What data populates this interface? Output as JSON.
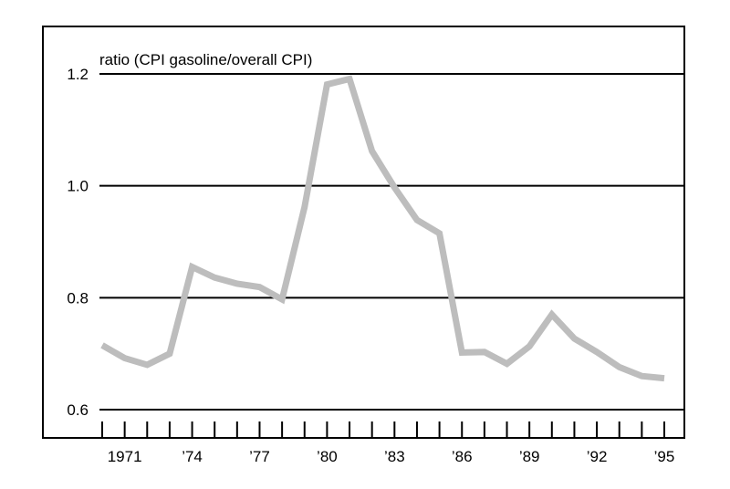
{
  "chart_data": {
    "type": "line",
    "title": "",
    "xlabel": "",
    "ylabel": "ratio (CPI gasoline/overall CPI)",
    "ylim": [
      0.6,
      1.2
    ],
    "yticks": [
      0.6,
      0.8,
      1.0,
      1.2
    ],
    "ytick_labels": [
      "0.6",
      "0.8",
      "1.0",
      "1.2"
    ],
    "xlim": [
      1970,
      1995
    ],
    "xticks": [
      1971,
      1974,
      1977,
      1980,
      1983,
      1986,
      1989,
      1992,
      1995
    ],
    "xtick_labels": [
      "1971",
      "’74",
      "’77",
      "’80",
      "’83",
      "’86",
      "’89",
      "’92",
      "’95"
    ],
    "grid": "horizontal",
    "series": [
      {
        "color": "#bdbdbd",
        "x": [
          1970,
          1971,
          1972,
          1973,
          1974,
          1975,
          1976,
          1977,
          1978,
          1979,
          1980,
          1981,
          1982,
          1983,
          1984,
          1985,
          1986,
          1987,
          1988,
          1989,
          1990,
          1991,
          1992,
          1993,
          1994,
          1995
        ],
        "values": [
          0.715,
          0.692,
          0.68,
          0.7,
          0.855,
          0.836,
          0.825,
          0.819,
          0.797,
          0.962,
          1.181,
          1.191,
          1.062,
          0.997,
          0.939,
          0.915,
          0.702,
          0.703,
          0.682,
          0.713,
          0.77,
          0.727,
          0.703,
          0.676,
          0.66,
          0.656
        ]
      }
    ]
  }
}
